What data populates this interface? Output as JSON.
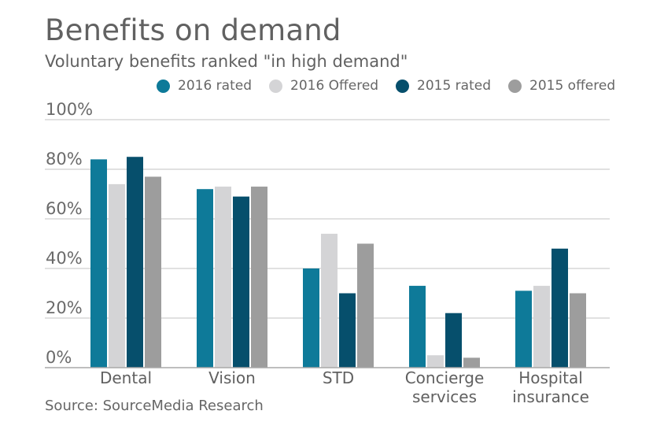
{
  "colors": {
    "c2016_rated": "#0e7a99",
    "c2016_offered": "#d4d4d6",
    "c2015_rated": "#064f6c",
    "c2015_offered": "#9d9d9d",
    "grid": "#cfcfcf",
    "axis": "#a9a9a9"
  },
  "chart_data": {
    "type": "bar",
    "title": "Benefits on demand",
    "subtitle": "Voluntary benefits ranked \"in high demand\"",
    "categories": [
      [
        "Dental"
      ],
      [
        "Vision"
      ],
      [
        "STD"
      ],
      [
        "Concierge",
        "services"
      ],
      [
        "Hospital",
        "insurance"
      ]
    ],
    "series": [
      {
        "name": "2016 rated",
        "color_key": "c2016_rated",
        "values": [
          84,
          72,
          40,
          33,
          31
        ]
      },
      {
        "name": "2016 Offered",
        "color_key": "c2016_offered",
        "values": [
          74,
          73,
          54,
          5,
          33
        ]
      },
      {
        "name": "2015 rated",
        "color_key": "c2015_rated",
        "values": [
          85,
          69,
          30,
          22,
          48
        ]
      },
      {
        "name": "2015 offered",
        "color_key": "c2015_offered",
        "values": [
          77,
          73,
          50,
          4,
          30
        ]
      }
    ],
    "ylim": [
      0,
      100
    ],
    "yticks": [
      0,
      20,
      40,
      60,
      80,
      100
    ],
    "ytick_labels": [
      "0%",
      "20%",
      "40%",
      "60%",
      "80%",
      "100%"
    ],
    "grid": true,
    "legend_position": "top-right",
    "xlabel": "",
    "ylabel": ""
  },
  "source": "Source: SourceMedia Research"
}
